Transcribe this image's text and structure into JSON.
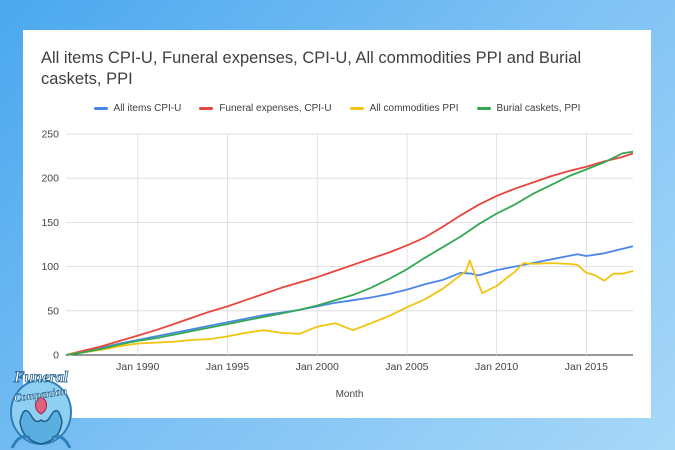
{
  "chart_data": {
    "type": "line",
    "title": "All items CPI-U, Funeral expenses, CPI-U, All commodities PPI and Burial caskets, PPI",
    "xlabel": "Month",
    "ylabel": "",
    "ylim": [
      0,
      250
    ],
    "yticks": [
      0,
      50,
      100,
      150,
      200,
      250
    ],
    "xlim": [
      1986.0,
      2017.6
    ],
    "xticks": [
      {
        "value": 1990,
        "label": "Jan 1990"
      },
      {
        "value": 1995,
        "label": "Jan 1995"
      },
      {
        "value": 2000,
        "label": "Jan 2000"
      },
      {
        "value": 2005,
        "label": "Jan 2005"
      },
      {
        "value": 2010,
        "label": "Jan 2010"
      },
      {
        "value": 2015,
        "label": "Jan 2015"
      }
    ],
    "grid": true,
    "legend_position": "top",
    "series": [
      {
        "name": "All items CPI-U",
        "color": "#4a86e8",
        "points": [
          [
            1986.0,
            0
          ],
          [
            1987,
            4
          ],
          [
            1988,
            8
          ],
          [
            1989,
            13
          ],
          [
            1990,
            17
          ],
          [
            1991,
            21
          ],
          [
            1992,
            25
          ],
          [
            1993,
            29
          ],
          [
            1994,
            33
          ],
          [
            1995,
            37
          ],
          [
            1996,
            41
          ],
          [
            1997,
            45
          ],
          [
            1998,
            48
          ],
          [
            1999,
            51
          ],
          [
            2000,
            55
          ],
          [
            2001,
            59
          ],
          [
            2002,
            62
          ],
          [
            2003,
            65
          ],
          [
            2004,
            69
          ],
          [
            2005,
            74
          ],
          [
            2006,
            80
          ],
          [
            2007,
            85
          ],
          [
            2008,
            93
          ],
          [
            2008.6,
            92
          ],
          [
            2009,
            90
          ],
          [
            2010,
            96
          ],
          [
            2011,
            100
          ],
          [
            2012,
            104
          ],
          [
            2013,
            108
          ],
          [
            2014,
            112
          ],
          [
            2014.5,
            114
          ],
          [
            2015,
            112
          ],
          [
            2016,
            115
          ],
          [
            2017,
            120
          ],
          [
            2017.6,
            123
          ]
        ]
      },
      {
        "name": "Funeral expenses, CPI-U",
        "color": "#e8453c",
        "points": [
          [
            1986.0,
            0
          ],
          [
            1987,
            5
          ],
          [
            1988,
            10
          ],
          [
            1989,
            16
          ],
          [
            1990,
            22
          ],
          [
            1991,
            28
          ],
          [
            1992,
            35
          ],
          [
            1993,
            42
          ],
          [
            1994,
            49
          ],
          [
            1995,
            55
          ],
          [
            1996,
            62
          ],
          [
            1997,
            69
          ],
          [
            1998,
            76
          ],
          [
            1999,
            82
          ],
          [
            2000,
            88
          ],
          [
            2001,
            95
          ],
          [
            2002,
            102
          ],
          [
            2003,
            109
          ],
          [
            2004,
            116
          ],
          [
            2005,
            124
          ],
          [
            2006,
            133
          ],
          [
            2007,
            145
          ],
          [
            2008,
            158
          ],
          [
            2009,
            170
          ],
          [
            2010,
            180
          ],
          [
            2011,
            188
          ],
          [
            2012,
            195
          ],
          [
            2013,
            202
          ],
          [
            2014,
            208
          ],
          [
            2015,
            213
          ],
          [
            2016,
            219
          ],
          [
            2017,
            224
          ],
          [
            2017.6,
            228
          ]
        ]
      },
      {
        "name": "All commodities PPI",
        "color": "#f1c40f",
        "points": [
          [
            1986.0,
            0
          ],
          [
            1987,
            3
          ],
          [
            1988,
            6
          ],
          [
            1989,
            10
          ],
          [
            1990,
            13
          ],
          [
            1991,
            14
          ],
          [
            1992,
            15
          ],
          [
            1993,
            17
          ],
          [
            1994,
            18
          ],
          [
            1995,
            21
          ],
          [
            1996,
            25
          ],
          [
            1997,
            28
          ],
          [
            1998,
            25
          ],
          [
            1999,
            24
          ],
          [
            2000,
            32
          ],
          [
            2001,
            36
          ],
          [
            2002,
            28
          ],
          [
            2003,
            36
          ],
          [
            2004,
            44
          ],
          [
            2005,
            54
          ],
          [
            2006,
            63
          ],
          [
            2007,
            75
          ],
          [
            2008.3,
            95
          ],
          [
            2008.5,
            107
          ],
          [
            2008.9,
            85
          ],
          [
            2009.2,
            70
          ],
          [
            2010,
            78
          ],
          [
            2011,
            94
          ],
          [
            2011.5,
            104
          ],
          [
            2012,
            103
          ],
          [
            2013,
            104
          ],
          [
            2014,
            103
          ],
          [
            2014.5,
            102
          ],
          [
            2015,
            93
          ],
          [
            2015.5,
            90
          ],
          [
            2016,
            84
          ],
          [
            2016.5,
            92
          ],
          [
            2017,
            92
          ],
          [
            2017.6,
            95
          ]
        ]
      },
      {
        "name": "Burial caskets, PPI",
        "color": "#34a853",
        "points": [
          [
            1986.0,
            0
          ],
          [
            1987,
            3
          ],
          [
            1988,
            7
          ],
          [
            1989,
            12
          ],
          [
            1990,
            16
          ],
          [
            1991,
            19
          ],
          [
            1992,
            23
          ],
          [
            1993,
            27
          ],
          [
            1994,
            31
          ],
          [
            1995,
            35
          ],
          [
            1996,
            39
          ],
          [
            1997,
            43
          ],
          [
            1998,
            47
          ],
          [
            1999,
            51
          ],
          [
            2000,
            56
          ],
          [
            2001,
            62
          ],
          [
            2002,
            68
          ],
          [
            2003,
            76
          ],
          [
            2004,
            86
          ],
          [
            2005,
            97
          ],
          [
            2006,
            110
          ],
          [
            2007,
            122
          ],
          [
            2008,
            134
          ],
          [
            2009,
            148
          ],
          [
            2010,
            160
          ],
          [
            2011,
            170
          ],
          [
            2012,
            182
          ],
          [
            2013,
            192
          ],
          [
            2014,
            202
          ],
          [
            2015,
            210
          ],
          [
            2016,
            218
          ],
          [
            2017,
            228
          ],
          [
            2017.6,
            230
          ]
        ]
      }
    ]
  },
  "logo": {
    "line1": "Funeral",
    "line2": "Companion"
  }
}
